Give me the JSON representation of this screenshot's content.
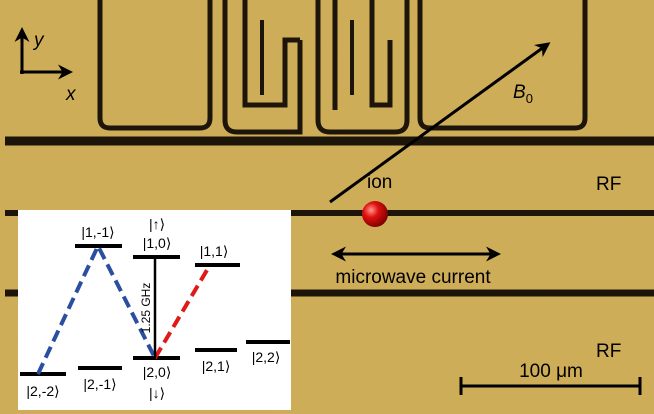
{
  "axes": {
    "y": "y",
    "x": "x"
  },
  "labels": {
    "b_field": {
      "base": "B",
      "sub": "0"
    },
    "ion": "ion",
    "rf_top": "RF",
    "rf_bottom": "RF",
    "microwave_current": "microwave current",
    "scale_bar": "100 μm"
  },
  "inset": {
    "upper_levels": [
      "|1,-1⟩",
      "|1,0⟩",
      "|1,1⟩"
    ],
    "upper_qubit_state": "|↑⟩",
    "lower_levels": [
      "|2,-2⟩",
      "|2,-1⟩",
      "|2,0⟩",
      "|2,1⟩",
      "|2,2⟩"
    ],
    "lower_qubit_state": "|↓⟩",
    "transition_frequency": "1.25 GHz"
  }
}
